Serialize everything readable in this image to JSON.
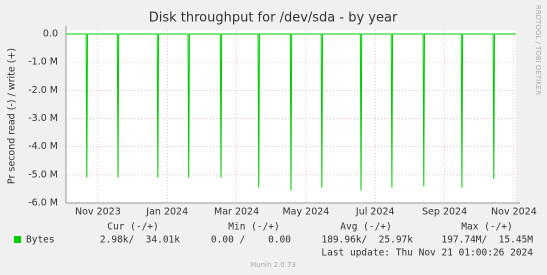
{
  "chart_data": {
    "type": "line",
    "title": "Disk throughput for /dev/sda - by year",
    "y_label": "Pr second read (-) / write (+)",
    "side_text": "RRDTOOL / TOBI OETIKER",
    "xlim": [
      0.08,
      13.06
    ],
    "xticks": [
      {
        "value": 1,
        "label": "Nov 2023"
      },
      {
        "value": 3,
        "label": "Jan 2024"
      },
      {
        "value": 5,
        "label": "Mar 2024"
      },
      {
        "value": 7,
        "label": "May 2024"
      },
      {
        "value": 9,
        "label": "Jul 2024"
      },
      {
        "value": 11,
        "label": "Sep 2024"
      },
      {
        "value": 13,
        "label": "Nov 2024"
      }
    ],
    "ylim": [
      -6000000,
      140000
    ],
    "yticks": [
      {
        "value": 0,
        "label": "0.0"
      },
      {
        "value": -1000000,
        "label": "-1.0 M"
      },
      {
        "value": -2000000,
        "label": "-2.0 M"
      },
      {
        "value": -3000000,
        "label": "-3.0 M"
      },
      {
        "value": -4000000,
        "label": "-4.0 M"
      },
      {
        "value": -5000000,
        "label": "-5.0 M"
      },
      {
        "value": -6000000,
        "label": "-6.0 M"
      }
    ],
    "grid": true,
    "series": [
      {
        "name": "Bytes",
        "color": "#00cc00",
        "x": [
          0.08,
          0.66,
          0.68,
          0.7,
          1.56,
          1.58,
          1.6,
          2.71,
          2.73,
          2.75,
          3.6,
          3.62,
          3.64,
          4.53,
          4.55,
          4.57,
          5.62,
          5.64,
          5.66,
          6.55,
          6.57,
          6.59,
          7.44,
          7.46,
          7.48,
          8.57,
          8.59,
          8.61,
          9.46,
          9.48,
          9.5,
          10.38,
          10.4,
          10.42,
          11.48,
          11.5,
          11.52,
          12.4,
          12.42,
          12.44,
          13.06
        ],
        "values": [
          0,
          0,
          -5100000,
          0,
          0,
          -5100000,
          0,
          0,
          -5100000,
          0,
          0,
          -5100000,
          0,
          0,
          -5100000,
          0,
          0,
          -5450000,
          0,
          0,
          -5550000,
          0,
          0,
          -5450000,
          0,
          0,
          -5550000,
          0,
          0,
          -5450000,
          0,
          0,
          -5400000,
          0,
          0,
          -5450000,
          0,
          0,
          -5150000,
          0,
          0
        ]
      }
    ],
    "stats": {
      "headers": [
        "Cur (-/+)",
        "Min (-/+)",
        "Avg (-/+)",
        "Max (-/+)"
      ],
      "values": [
        "2.98k/  34.01k",
        "0.00 /    0.00",
        "189.96k/  25.97k",
        "197.74M/  15.45M"
      ]
    },
    "last_update": "Last update: Thu Nov 21 01:00:26 2024",
    "footer": "Munin 2.0.73"
  }
}
